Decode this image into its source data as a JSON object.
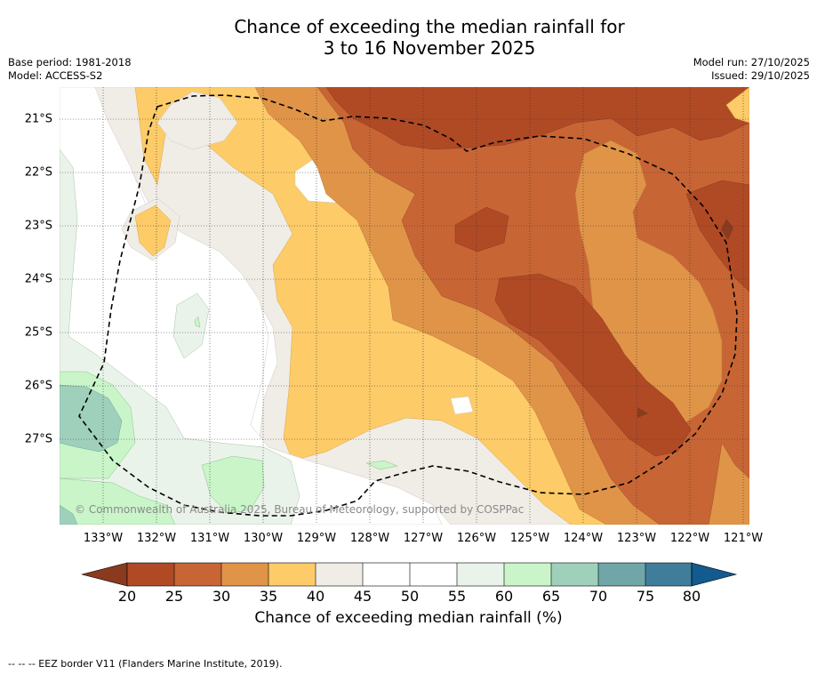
{
  "title_line1": "Chance of exceeding the median rainfall for",
  "title_line2": "3 to 16 November 2025",
  "base_period": "Base period: 1981-2018",
  "model": "Model: ACCESS-S2",
  "model_run": "Model run: 27/10/2025",
  "issued": "Issued: 29/10/2025",
  "lat_labels": [
    "21°S",
    "22°S",
    "23°S",
    "24°S",
    "25°S",
    "26°S",
    "27°S"
  ],
  "lon_labels": [
    "133°W",
    "132°W",
    "131°W",
    "130°W",
    "129°W",
    "128°W",
    "127°W",
    "126°W",
    "125°W",
    "124°W",
    "123°W",
    "122°W",
    "121°W"
  ],
  "copyright": "© Commonwealth of Australia 2025, Bureau of Meteorology, supported by COSPPac",
  "colorbar_ticks": [
    "20",
    "25",
    "30",
    "35",
    "40",
    "45",
    "50",
    "55",
    "60",
    "65",
    "70",
    "75",
    "80"
  ],
  "colorbar_label": "Chance of exceeding median rainfall (%)",
  "footer": "--  --  -- EEZ border V11 (Flanders Marine Institute, 2019).",
  "colors": {
    "lt20": "#8a3a1e",
    "c20": "#b04a25",
    "c25": "#c86535",
    "c30": "#e09448",
    "c35": "#fdcb68",
    "c40": "#f0ece6",
    "c45": "#ffffff",
    "c50": "#ffffff",
    "c55": "#eaf3e9",
    "c60": "#c9f5c9",
    "c65": "#9fd0bc",
    "c70": "#70a6a8",
    "c75": "#3f7d9a",
    "gt80": "#135a8f"
  }
}
